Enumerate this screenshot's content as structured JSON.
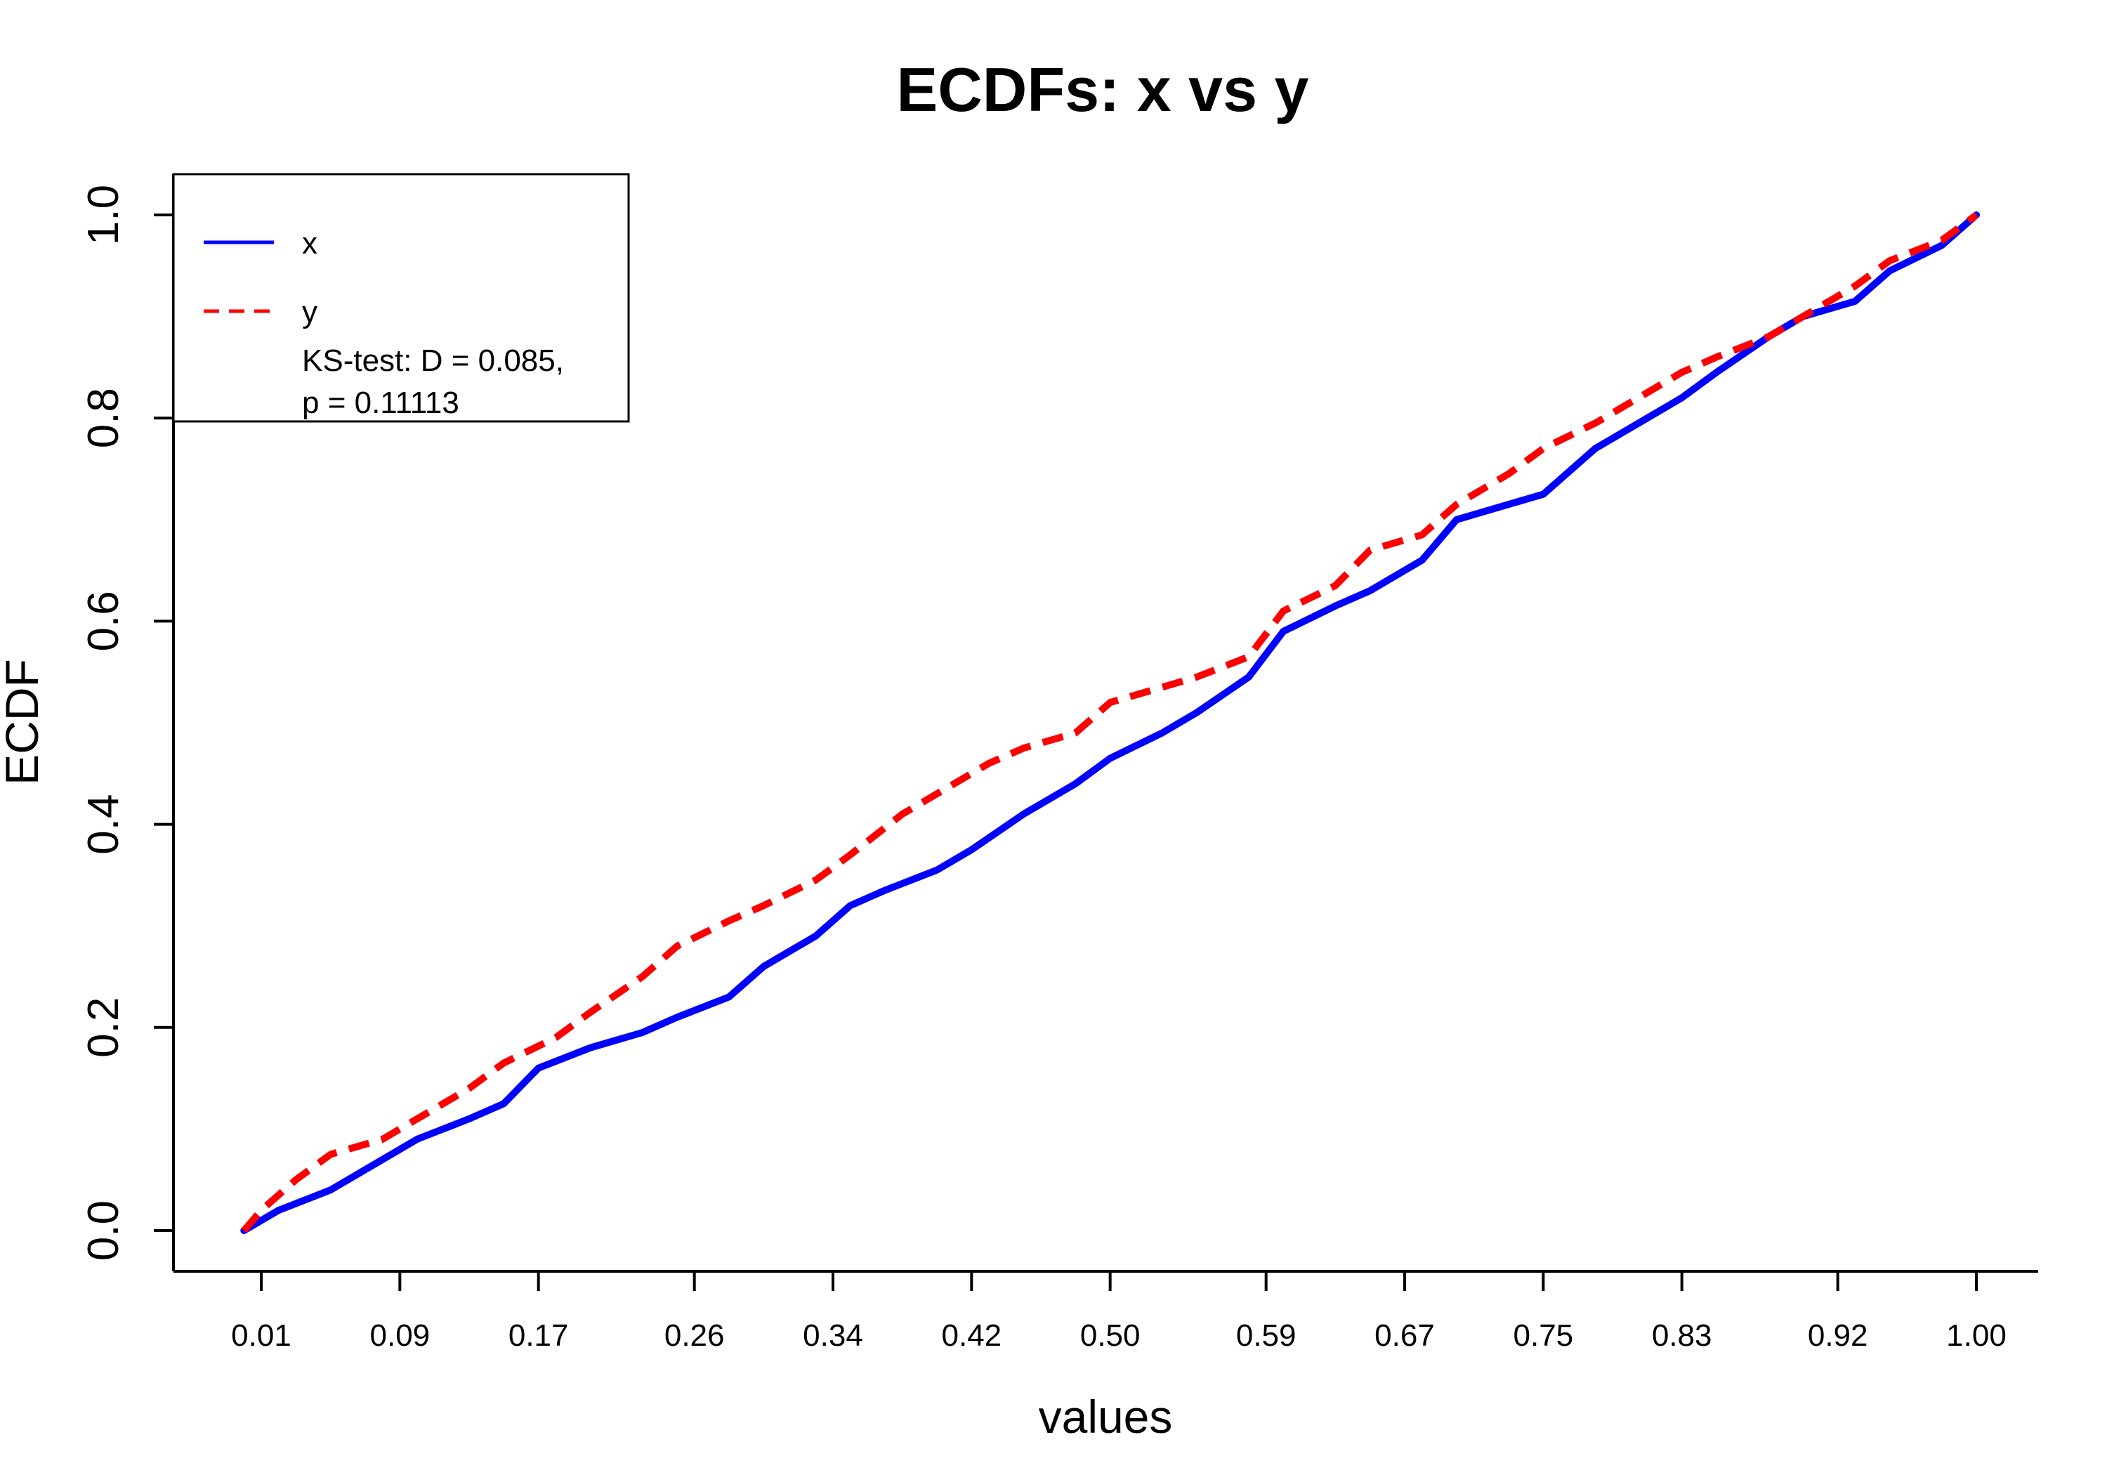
{
  "chart_data": {
    "type": "line",
    "title": "ECDFs: x vs y",
    "xlabel": "values",
    "ylabel": "ECDF",
    "xlim": [
      -0.01,
      1.04
    ],
    "ylim": [
      0.0,
      1.0
    ],
    "xticks": [
      0.01,
      0.09,
      0.17,
      0.26,
      0.34,
      0.42,
      0.5,
      0.59,
      0.67,
      0.75,
      0.83,
      0.92,
      1.0
    ],
    "xtick_labels": [
      "0.01",
      "0.09",
      "0.17",
      "0.26",
      "0.34",
      "0.42",
      "0.50",
      "0.59",
      "0.67",
      "0.75",
      "0.83",
      "0.92",
      "1.00"
    ],
    "yticks": [
      0.0,
      0.2,
      0.4,
      0.6,
      0.8,
      1.0
    ],
    "ytick_labels": [
      "0.0",
      "0.2",
      "0.4",
      "0.6",
      "0.8",
      "1.0"
    ],
    "grid": false,
    "legend": {
      "position": "top-left",
      "annotation_lines": [
        "KS-test: D = 0.085,",
        "p = 0.11113"
      ]
    },
    "series": [
      {
        "name": "x",
        "color": "#0000ff",
        "style": "solid",
        "x": [
          0.0,
          0.02,
          0.05,
          0.08,
          0.1,
          0.13,
          0.15,
          0.17,
          0.2,
          0.23,
          0.25,
          0.28,
          0.3,
          0.33,
          0.35,
          0.37,
          0.4,
          0.42,
          0.45,
          0.48,
          0.5,
          0.53,
          0.55,
          0.58,
          0.6,
          0.63,
          0.65,
          0.68,
          0.7,
          0.73,
          0.75,
          0.78,
          0.8,
          0.83,
          0.85,
          0.88,
          0.9,
          0.93,
          0.95,
          0.98,
          1.0
        ],
        "y": [
          0.0,
          0.02,
          0.04,
          0.07,
          0.09,
          0.11,
          0.125,
          0.16,
          0.18,
          0.195,
          0.21,
          0.23,
          0.26,
          0.29,
          0.32,
          0.335,
          0.355,
          0.375,
          0.41,
          0.44,
          0.465,
          0.49,
          0.51,
          0.545,
          0.59,
          0.615,
          0.63,
          0.66,
          0.7,
          0.715,
          0.725,
          0.77,
          0.79,
          0.82,
          0.845,
          0.88,
          0.9,
          0.915,
          0.945,
          0.97,
          1.0
        ]
      },
      {
        "name": "y",
        "color": "#ff0000",
        "style": "dashed",
        "x": [
          0.0,
          0.01,
          0.03,
          0.05,
          0.08,
          0.1,
          0.13,
          0.15,
          0.18,
          0.2,
          0.23,
          0.25,
          0.28,
          0.3,
          0.33,
          0.35,
          0.38,
          0.4,
          0.43,
          0.45,
          0.48,
          0.5,
          0.53,
          0.55,
          0.58,
          0.6,
          0.63,
          0.65,
          0.68,
          0.7,
          0.73,
          0.75,
          0.78,
          0.8,
          0.83,
          0.85,
          0.88,
          0.9,
          0.93,
          0.95,
          0.98,
          1.0
        ],
        "y": [
          0.0,
          0.02,
          0.05,
          0.075,
          0.09,
          0.11,
          0.14,
          0.165,
          0.19,
          0.215,
          0.25,
          0.28,
          0.305,
          0.32,
          0.345,
          0.37,
          0.41,
          0.43,
          0.46,
          0.475,
          0.49,
          0.52,
          0.535,
          0.545,
          0.565,
          0.61,
          0.635,
          0.67,
          0.685,
          0.715,
          0.745,
          0.77,
          0.795,
          0.815,
          0.845,
          0.86,
          0.88,
          0.9,
          0.93,
          0.955,
          0.975,
          1.0
        ]
      }
    ]
  }
}
